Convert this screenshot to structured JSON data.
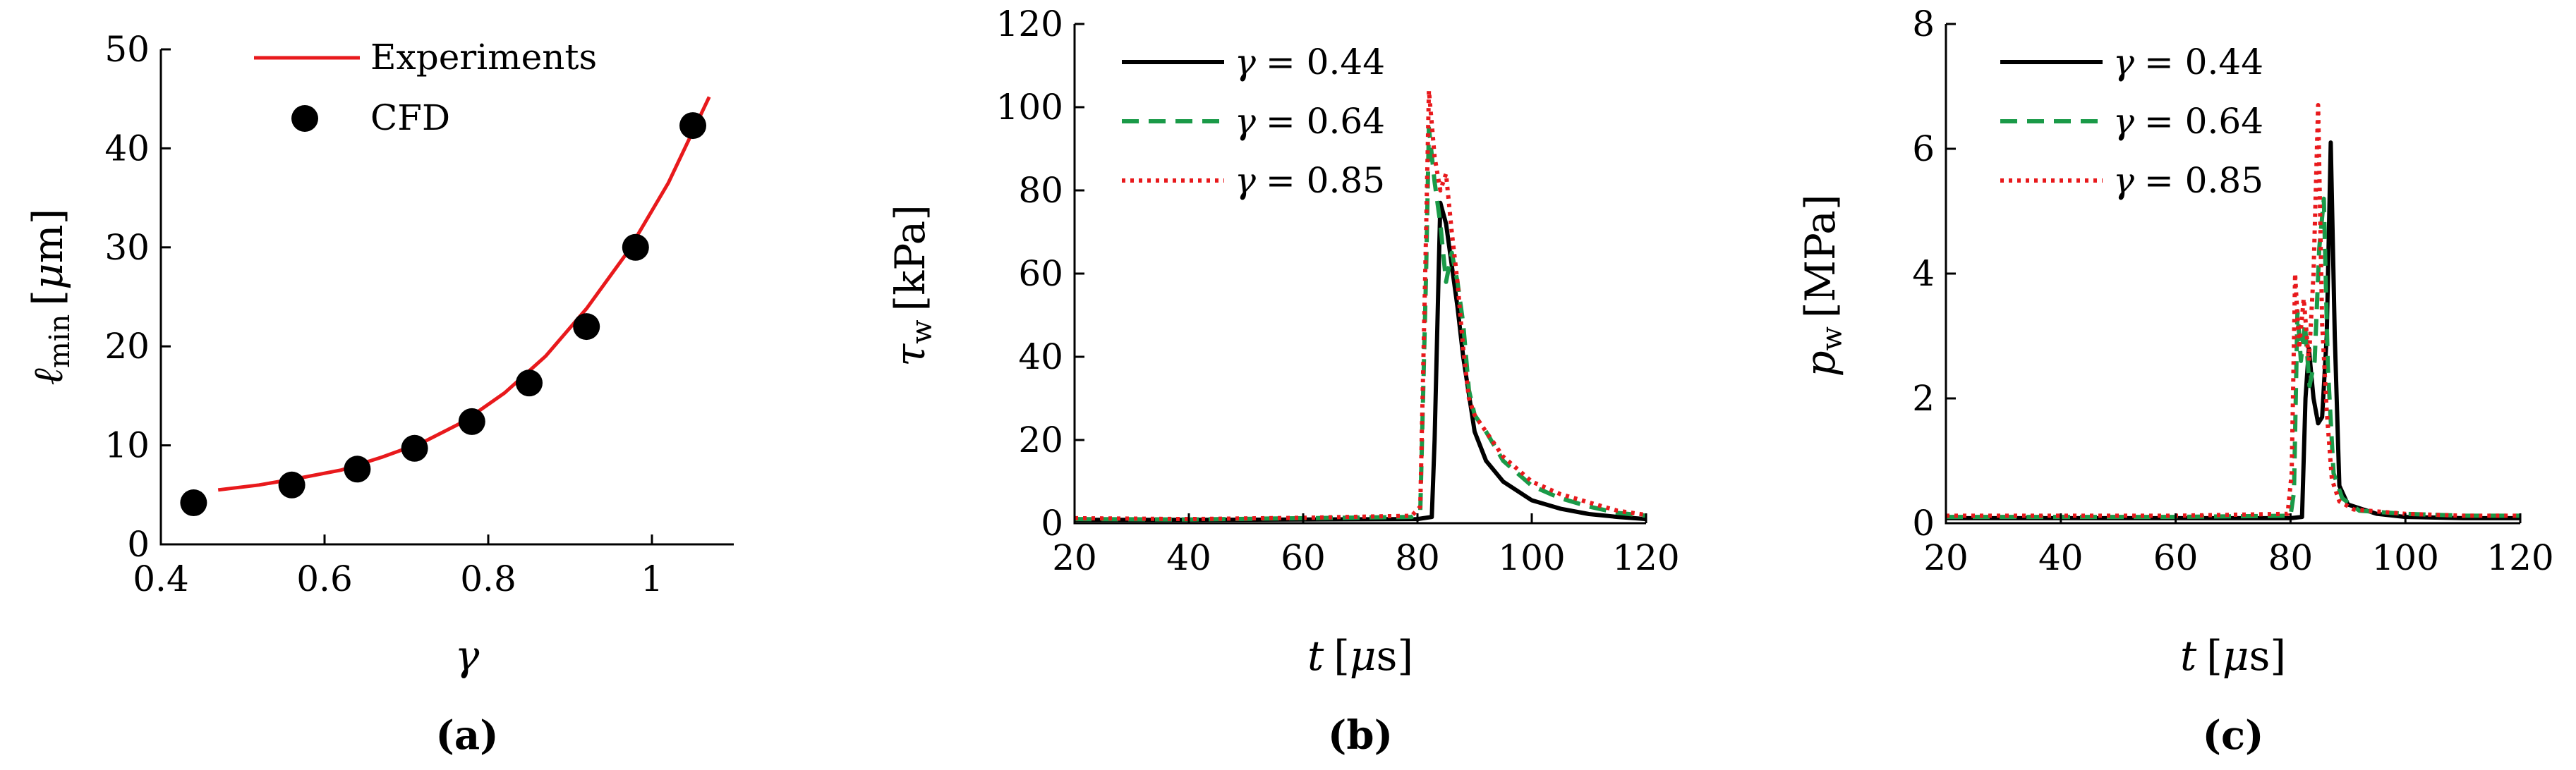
{
  "colors": {
    "red": "#e8191c",
    "black": "#000000",
    "green": "#1a9a48"
  },
  "chart_data": [
    {
      "panel": "(a)",
      "panel_label": "(a)",
      "type": "line+scatter",
      "xlabel": "γ",
      "ylabel_sym": "ℓ",
      "ylabel_sub": "min",
      "ylabel_unit_open": "[",
      "ylabel_unit_mu": "μ",
      "ylabel_unit_rest": "m]",
      "xlim": [
        0.4,
        1.1
      ],
      "ylim": [
        0,
        50
      ],
      "xticks": [
        0.4,
        0.6,
        0.8,
        1.0
      ],
      "xtick_labels": [
        "0.4",
        "0.6",
        "0.8",
        "1"
      ],
      "yticks": [
        0,
        10,
        20,
        30,
        40,
        50
      ],
      "ytick_labels": [
        "0",
        "10",
        "20",
        "30",
        "40",
        "50"
      ],
      "legend": {
        "position": "top-left",
        "entries": [
          "Experiments",
          "CFD"
        ]
      },
      "series": [
        {
          "name": "Experiments",
          "style": "solid",
          "color": "#e8191c",
          "x": [
            0.47,
            0.52,
            0.57,
            0.62,
            0.67,
            0.72,
            0.77,
            0.82,
            0.87,
            0.92,
            0.97,
            1.02,
            1.07
          ],
          "y": [
            5.5,
            6.0,
            6.7,
            7.5,
            8.8,
            10.3,
            12.4,
            15.3,
            19.0,
            23.8,
            29.5,
            36.5,
            45.2
          ]
        },
        {
          "name": "CFD",
          "style": "marker",
          "color": "#000000",
          "x": [
            0.44,
            0.56,
            0.64,
            0.71,
            0.78,
            0.85,
            0.92,
            0.98,
            1.05
          ],
          "y": [
            4.2,
            6.0,
            7.6,
            9.7,
            12.4,
            16.3,
            22.0,
            30.0,
            42.3
          ]
        }
      ]
    },
    {
      "panel": "(b)",
      "panel_label": "(b)",
      "type": "line",
      "xlabel_sym": "t",
      "xlabel_unit_open": "[",
      "xlabel_unit_mu": "μ",
      "xlabel_unit_rest": "s]",
      "ylabel_sym": "τ",
      "ylabel_sub": "w",
      "ylabel_unit": "[kPa]",
      "xlim": [
        20,
        120
      ],
      "ylim": [
        0,
        120
      ],
      "xticks": [
        20,
        40,
        60,
        80,
        100,
        120
      ],
      "xtick_labels": [
        "20",
        "40",
        "60",
        "80",
        "100",
        "120"
      ],
      "yticks": [
        0,
        20,
        40,
        60,
        80,
        100,
        120
      ],
      "ytick_labels": [
        "0",
        "20",
        "40",
        "60",
        "80",
        "100",
        "120"
      ],
      "legend": {
        "position": "top-left",
        "entries": [
          "γ = 0.44",
          "γ = 0.64",
          "γ = 0.85"
        ]
      },
      "series": [
        {
          "name": "γ = 0.44",
          "legend_sym": "γ",
          "legend_eq": "= 0.44",
          "style": "solid",
          "color": "#000000",
          "x": [
            20,
            40,
            60,
            80,
            82.5,
            83,
            84,
            85,
            86,
            87,
            88,
            90,
            92,
            95,
            100,
            105,
            110,
            115,
            120
          ],
          "y": [
            0.8,
            0.8,
            0.9,
            1.0,
            1.5,
            20,
            77,
            72,
            62,
            52,
            40,
            22,
            15,
            10,
            5.5,
            3.5,
            2.2,
            1.5,
            1.0
          ]
        },
        {
          "name": "γ = 0.64",
          "legend_sym": "γ",
          "legend_eq": "= 0.64",
          "style": "dashed",
          "color": "#1a9a48",
          "x": [
            20,
            40,
            60,
            79,
            80.5,
            81.5,
            82,
            83,
            84,
            85,
            86,
            87,
            88,
            89,
            90,
            92,
            95,
            100,
            105,
            110,
            115,
            120
          ],
          "y": [
            1.0,
            0.9,
            1.2,
            1.5,
            3,
            60,
            95,
            82,
            72,
            58,
            65,
            58,
            48,
            32,
            26,
            22,
            15,
            9,
            6,
            4,
            2.5,
            1.8
          ]
        },
        {
          "name": "γ = 0.85",
          "legend_sym": "γ",
          "legend_eq": "= 0.85",
          "style": "dotted",
          "color": "#e8191c",
          "x": [
            20,
            40,
            60,
            79,
            80.5,
            81.5,
            82,
            82.5,
            83,
            84,
            85,
            86,
            87,
            88,
            89,
            90,
            92,
            95,
            100,
            105,
            110,
            115,
            120
          ],
          "y": [
            1.2,
            1.0,
            1.3,
            1.8,
            4,
            70,
            104,
            96,
            88,
            80,
            84,
            70,
            58,
            42,
            30,
            26,
            22,
            16,
            10,
            7,
            5,
            3,
            2
          ]
        }
      ]
    },
    {
      "panel": "(c)",
      "panel_label": "(c)",
      "type": "line",
      "xlabel_sym": "t",
      "xlabel_unit_open": "[",
      "xlabel_unit_mu": "μ",
      "xlabel_unit_rest": "s]",
      "ylabel_sym": "p",
      "ylabel_sub": "w",
      "ylabel_unit": "[MPa]",
      "xlim": [
        20,
        120
      ],
      "ylim": [
        0,
        8
      ],
      "xticks": [
        20,
        40,
        60,
        80,
        100,
        120
      ],
      "xtick_labels": [
        "20",
        "40",
        "60",
        "80",
        "100",
        "120"
      ],
      "yticks": [
        0,
        2,
        4,
        6,
        8
      ],
      "ytick_labels": [
        "0",
        "2",
        "4",
        "6",
        "8"
      ],
      "legend": {
        "position": "top-left",
        "entries": [
          "γ = 0.44",
          "γ = 0.64",
          "γ = 0.85"
        ]
      },
      "series": [
        {
          "name": "γ = 0.44",
          "legend_sym": "γ",
          "legend_eq": "= 0.44",
          "style": "solid",
          "color": "#000000",
          "x": [
            20,
            40,
            60,
            80,
            82,
            82.6,
            83.2,
            84,
            84.8,
            85.5,
            86.3,
            87,
            87.7,
            88.5,
            90,
            95,
            100,
            110,
            120
          ],
          "y": [
            0.08,
            0.08,
            0.08,
            0.08,
            0.1,
            2.0,
            2.8,
            2.0,
            1.6,
            1.7,
            3.0,
            6.1,
            3.0,
            0.6,
            0.3,
            0.15,
            0.1,
            0.08,
            0.08
          ]
        },
        {
          "name": "γ = 0.64",
          "legend_sym": "γ",
          "legend_eq": "= 0.64",
          "style": "dashed",
          "color": "#1a9a48",
          "x": [
            20,
            40,
            60,
            80,
            80.6,
            81.2,
            81.8,
            82.5,
            83.3,
            84.2,
            85,
            85.8,
            86.5,
            87.5,
            89,
            92,
            100,
            110,
            120
          ],
          "y": [
            0.1,
            0.1,
            0.1,
            0.12,
            0.5,
            3.4,
            2.6,
            3.2,
            2.2,
            2.6,
            4.4,
            5.2,
            2.5,
            0.8,
            0.4,
            0.2,
            0.15,
            0.12,
            0.12
          ]
        },
        {
          "name": "γ = 0.85",
          "legend_sym": "γ",
          "legend_eq": "= 0.85",
          "style": "dotted",
          "color": "#e8191c",
          "x": [
            20,
            40,
            60,
            79.5,
            80.2,
            80.8,
            81.5,
            82.3,
            83.2,
            84,
            84.8,
            85.5,
            86.3,
            87.2,
            88.5,
            91,
            100,
            110,
            120
          ],
          "y": [
            0.12,
            0.12,
            0.12,
            0.15,
            0.8,
            4.0,
            2.8,
            3.6,
            2.6,
            4.0,
            6.7,
            3.2,
            1.8,
            0.7,
            0.35,
            0.22,
            0.15,
            0.12,
            0.12
          ]
        }
      ]
    }
  ]
}
